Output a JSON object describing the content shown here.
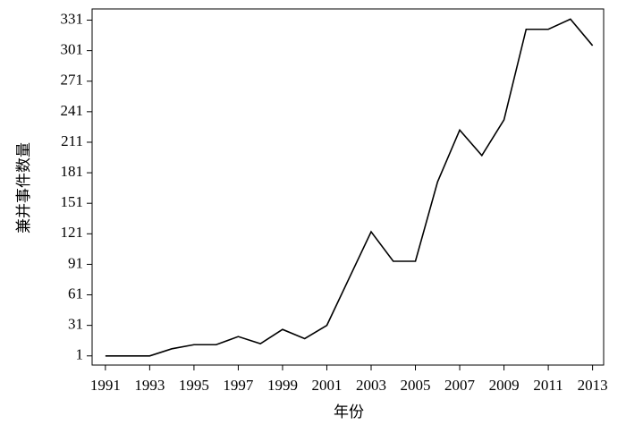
{
  "chart_data": {
    "type": "line",
    "x_label": "年份",
    "y_label": "兼并事件数量",
    "x": [
      1991,
      1992,
      1993,
      1994,
      1995,
      1996,
      1997,
      1998,
      1999,
      2000,
      2001,
      2002,
      2003,
      2004,
      2005,
      2006,
      2007,
      2008,
      2009,
      2010,
      2011,
      2012,
      2013
    ],
    "values": [
      1,
      1,
      1,
      8,
      12,
      12,
      20,
      13,
      27,
      18,
      31,
      77,
      123,
      94,
      94,
      172,
      223,
      198,
      233,
      322,
      322,
      332,
      306
    ],
    "color": "#000000",
    "xlim": [
      1990.4,
      2013.5
    ],
    "xticks": [
      1991,
      1993,
      1995,
      1997,
      1999,
      2001,
      2003,
      2005,
      2007,
      2009,
      2011,
      2013
    ],
    "ylim": [
      -8,
      342
    ],
    "yticks": [
      1,
      31,
      61,
      91,
      121,
      151,
      181,
      211,
      241,
      271,
      301,
      331
    ],
    "grid": false
  }
}
